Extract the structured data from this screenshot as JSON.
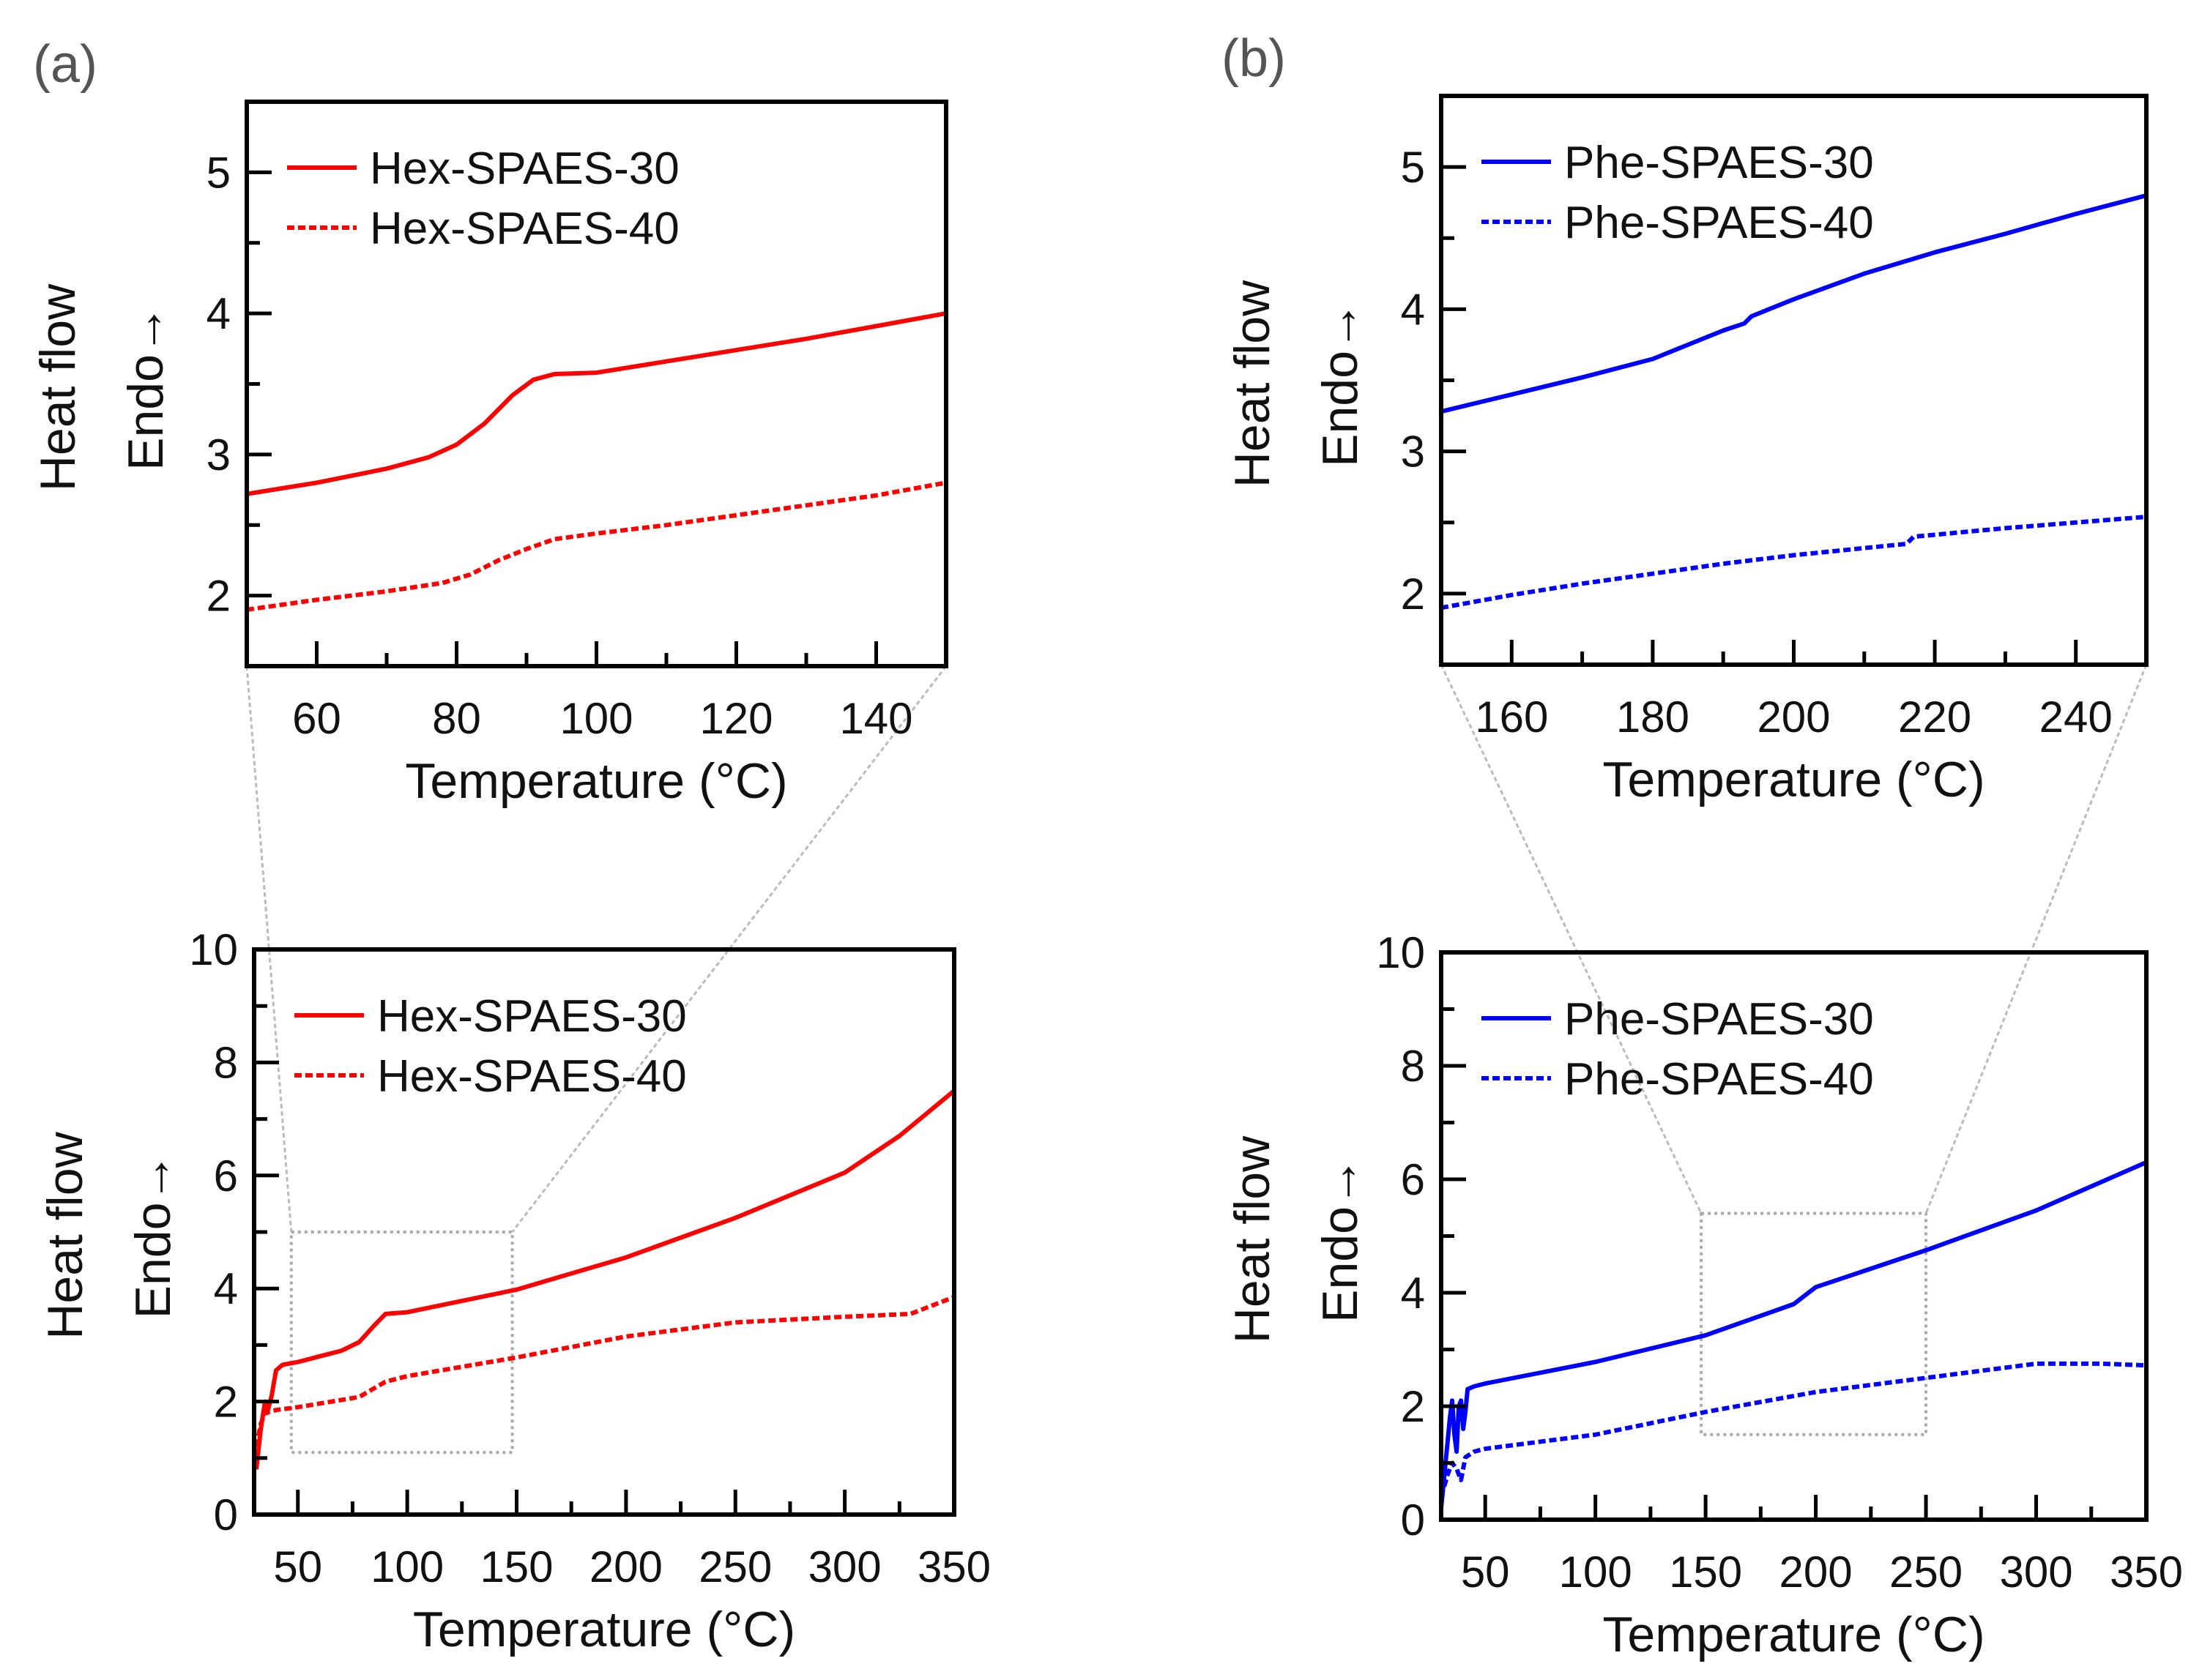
{
  "panels": [
    {
      "label": "(a)"
    },
    {
      "label": "(b)"
    }
  ],
  "chart_data": [
    {
      "id": "a-top",
      "type": "line",
      "xlabel": "Temperature (°C)",
      "ylabel_lines": [
        "Heat flow",
        "Endo→"
      ],
      "xlim": [
        50,
        150
      ],
      "ylim": [
        1.5,
        5.5
      ],
      "xticks": [
        60,
        80,
        100,
        120,
        140
      ],
      "xtick_labels": [
        "60",
        "80",
        "100",
        "120",
        "140"
      ],
      "xminor": 10,
      "yticks": [
        2,
        3,
        4,
        5
      ],
      "ytick_labels": [
        "2",
        "3",
        "4",
        "5"
      ],
      "yminor": 0.5,
      "grid": false,
      "legend_position": "top-left",
      "series": [
        {
          "name": "Hex-SPAES-30",
          "color": "#ff0000",
          "style": "solid",
          "x": [
            50,
            60,
            70,
            76,
            80,
            84,
            88,
            91,
            94,
            100,
            110,
            120,
            130,
            140,
            150
          ],
          "y": [
            2.72,
            2.8,
            2.9,
            2.98,
            3.07,
            3.22,
            3.42,
            3.53,
            3.57,
            3.58,
            3.66,
            3.74,
            3.82,
            3.91,
            4.0
          ]
        },
        {
          "name": "Hex-SPAES-40",
          "color": "#ff0000",
          "style": "dashed",
          "x": [
            50,
            60,
            70,
            78,
            82,
            86,
            90,
            94,
            100,
            110,
            120,
            130,
            140,
            150
          ],
          "y": [
            1.9,
            1.97,
            2.03,
            2.09,
            2.15,
            2.25,
            2.33,
            2.4,
            2.44,
            2.5,
            2.57,
            2.64,
            2.71,
            2.8
          ]
        }
      ]
    },
    {
      "id": "a-bottom",
      "type": "line",
      "xlabel": "Temperature (°C)",
      "ylabel_lines": [
        "Heat flow",
        "Endo→"
      ],
      "xlim": [
        30,
        350
      ],
      "ylim": [
        0,
        10
      ],
      "xticks": [
        50,
        100,
        150,
        200,
        250,
        300,
        350
      ],
      "xtick_labels": [
        "50",
        "100",
        "150",
        "200",
        "250",
        "300",
        "350"
      ],
      "xminor": 25,
      "yticks": [
        0,
        2,
        4,
        6,
        8,
        10
      ],
      "ytick_labels": [
        "0",
        "2",
        "4",
        "6",
        "8",
        "10"
      ],
      "yminor": 1,
      "grid": false,
      "legend_position": "top-left",
      "zoom_region": {
        "x": [
          47,
          148
        ],
        "y": [
          1.1,
          5.0
        ]
      },
      "series": [
        {
          "name": "Hex-SPAES-30",
          "color": "#ff0000",
          "style": "solid",
          "x": [
            31,
            33,
            35,
            36,
            38,
            40,
            43,
            50,
            60,
            70,
            78,
            85,
            90,
            100,
            150,
            200,
            250,
            300,
            325,
            350
          ],
          "y": [
            0.8,
            1.5,
            2.0,
            1.8,
            2.1,
            2.55,
            2.65,
            2.7,
            2.8,
            2.9,
            3.05,
            3.35,
            3.55,
            3.58,
            3.98,
            4.55,
            5.25,
            6.05,
            6.7,
            7.5
          ]
        },
        {
          "name": "Hex-SPAES-40",
          "color": "#ff0000",
          "style": "dashed",
          "x": [
            31,
            33,
            35,
            40,
            50,
            78,
            90,
            100,
            150,
            200,
            250,
            300,
            330,
            350
          ],
          "y": [
            1.2,
            1.6,
            1.8,
            1.85,
            1.9,
            2.08,
            2.35,
            2.45,
            2.78,
            3.15,
            3.4,
            3.5,
            3.55,
            3.85
          ]
        }
      ]
    },
    {
      "id": "b-top",
      "type": "line",
      "xlabel": "Temperature (°C)",
      "ylabel_lines": [
        "Heat flow",
        "Endo→"
      ],
      "xlim": [
        150,
        250
      ],
      "ylim": [
        1.5,
        5.5
      ],
      "xticks": [
        160,
        180,
        200,
        220,
        240
      ],
      "xtick_labels": [
        "160",
        "180",
        "200",
        "220",
        "240"
      ],
      "xminor": 10,
      "yticks": [
        2,
        3,
        4,
        5
      ],
      "ytick_labels": [
        "2",
        "3",
        "4",
        "5"
      ],
      "yminor": 0.5,
      "grid": false,
      "legend_position": "top-left",
      "series": [
        {
          "name": "Phe-SPAES-30",
          "color": "#0000ff",
          "style": "solid",
          "x": [
            150,
            160,
            170,
            180,
            190,
            193,
            194,
            200,
            210,
            220,
            230,
            240,
            250
          ],
          "y": [
            3.28,
            3.4,
            3.52,
            3.65,
            3.85,
            3.9,
            3.95,
            4.07,
            4.25,
            4.4,
            4.53,
            4.67,
            4.8
          ]
        },
        {
          "name": "Phe-SPAES-40",
          "color": "#0000ff",
          "style": "dashed",
          "x": [
            150,
            160,
            170,
            180,
            190,
            200,
            210,
            216,
            217,
            230,
            240,
            250
          ],
          "y": [
            1.9,
            1.99,
            2.07,
            2.14,
            2.21,
            2.27,
            2.32,
            2.35,
            2.4,
            2.46,
            2.5,
            2.54
          ]
        }
      ]
    },
    {
      "id": "b-bottom",
      "type": "line",
      "xlabel": "Temperature (°C)",
      "ylabel_lines": [
        "Heat flow",
        "Endo→"
      ],
      "xlim": [
        30,
        350
      ],
      "ylim": [
        0,
        10
      ],
      "xticks": [
        50,
        100,
        150,
        200,
        250,
        300,
        350
      ],
      "xtick_labels": [
        "50",
        "100",
        "150",
        "200",
        "250",
        "300",
        "350"
      ],
      "xminor": 25,
      "yticks": [
        0,
        2,
        4,
        6,
        8,
        10
      ],
      "ytick_labels": [
        "0",
        "2",
        "4",
        "6",
        "8",
        "10"
      ],
      "yminor": 1,
      "grid": false,
      "legend_position": "top-left",
      "zoom_region": {
        "x": [
          148,
          250
        ],
        "y": [
          1.5,
          5.4
        ]
      },
      "series": [
        {
          "name": "Phe-SPAES-30",
          "color": "#0000ff",
          "style": "solid",
          "x": [
            30,
            32,
            34,
            35,
            36,
            37,
            38,
            39,
            40,
            41,
            42,
            45,
            50,
            100,
            150,
            190,
            200,
            250,
            300,
            350
          ],
          "y": [
            0.2,
            1.0,
            1.8,
            2.1,
            1.5,
            1.2,
            2.0,
            2.1,
            1.6,
            1.9,
            2.3,
            2.35,
            2.4,
            2.78,
            3.25,
            3.8,
            4.1,
            4.75,
            5.45,
            6.3
          ]
        },
        {
          "name": "Phe-SPAES-40",
          "color": "#0000ff",
          "style": "dashed",
          "x": [
            30,
            33,
            35,
            37,
            39,
            41,
            45,
            50,
            100,
            150,
            200,
            250,
            300,
            330,
            350
          ],
          "y": [
            0.4,
            0.8,
            1.0,
            0.9,
            0.7,
            1.1,
            1.2,
            1.25,
            1.5,
            1.9,
            2.25,
            2.5,
            2.75,
            2.75,
            2.72
          ]
        }
      ]
    }
  ]
}
